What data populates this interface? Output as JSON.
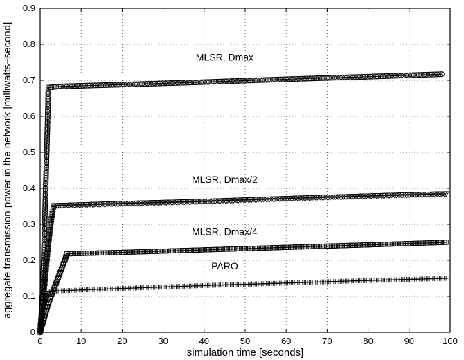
{
  "chart_data": {
    "type": "line",
    "title": "",
    "xlabel": "simulation time [seconds]",
    "ylabel": "aggregate transmission power in the network [milliwatts–second]",
    "xlim": [
      0,
      100
    ],
    "ylim": [
      0,
      0.9
    ],
    "xticks": [
      "0",
      "10",
      "20",
      "30",
      "40",
      "50",
      "60",
      "70",
      "80",
      "90",
      "100"
    ],
    "yticks": [
      "0",
      "0.1",
      "0.2",
      "0.3",
      "0.4",
      "0.5",
      "0.6",
      "0.7",
      "0.8",
      "0.9"
    ],
    "grid": true,
    "legend": "none",
    "series": [
      {
        "name": "MLSR, Dmax",
        "marker": "circle",
        "x": [
          0,
          0.3,
          0.6,
          0.9,
          1.2,
          1.5,
          1.8,
          2.0,
          5,
          20,
          40,
          60,
          80,
          98
        ],
        "y": [
          0,
          0.05,
          0.12,
          0.22,
          0.34,
          0.46,
          0.58,
          0.68,
          0.683,
          0.688,
          0.695,
          0.703,
          0.71,
          0.717
        ]
      },
      {
        "name": "MLSR, Dmax/2",
        "marker": "triangle-down",
        "x": [
          0,
          0.5,
          1.0,
          1.5,
          2.0,
          2.5,
          3.0,
          3.5,
          20,
          40,
          60,
          80,
          99
        ],
        "y": [
          0,
          0.06,
          0.12,
          0.18,
          0.24,
          0.29,
          0.33,
          0.352,
          0.358,
          0.364,
          0.372,
          0.379,
          0.385
        ]
      },
      {
        "name": "MLSR, Dmax/4",
        "marker": "square",
        "x": [
          0,
          1,
          2,
          3,
          4,
          5,
          6,
          6.5,
          20,
          40,
          60,
          80,
          99
        ],
        "y": [
          0,
          0.04,
          0.08,
          0.11,
          0.14,
          0.17,
          0.2,
          0.218,
          0.222,
          0.229,
          0.236,
          0.243,
          0.25
        ]
      },
      {
        "name": "PARO",
        "marker": "plus",
        "x": [
          0,
          1,
          2,
          3,
          4,
          20,
          40,
          60,
          80,
          99
        ],
        "y": [
          0,
          0.08,
          0.112,
          0.113,
          0.115,
          0.122,
          0.13,
          0.137,
          0.144,
          0.15
        ]
      }
    ]
  }
}
